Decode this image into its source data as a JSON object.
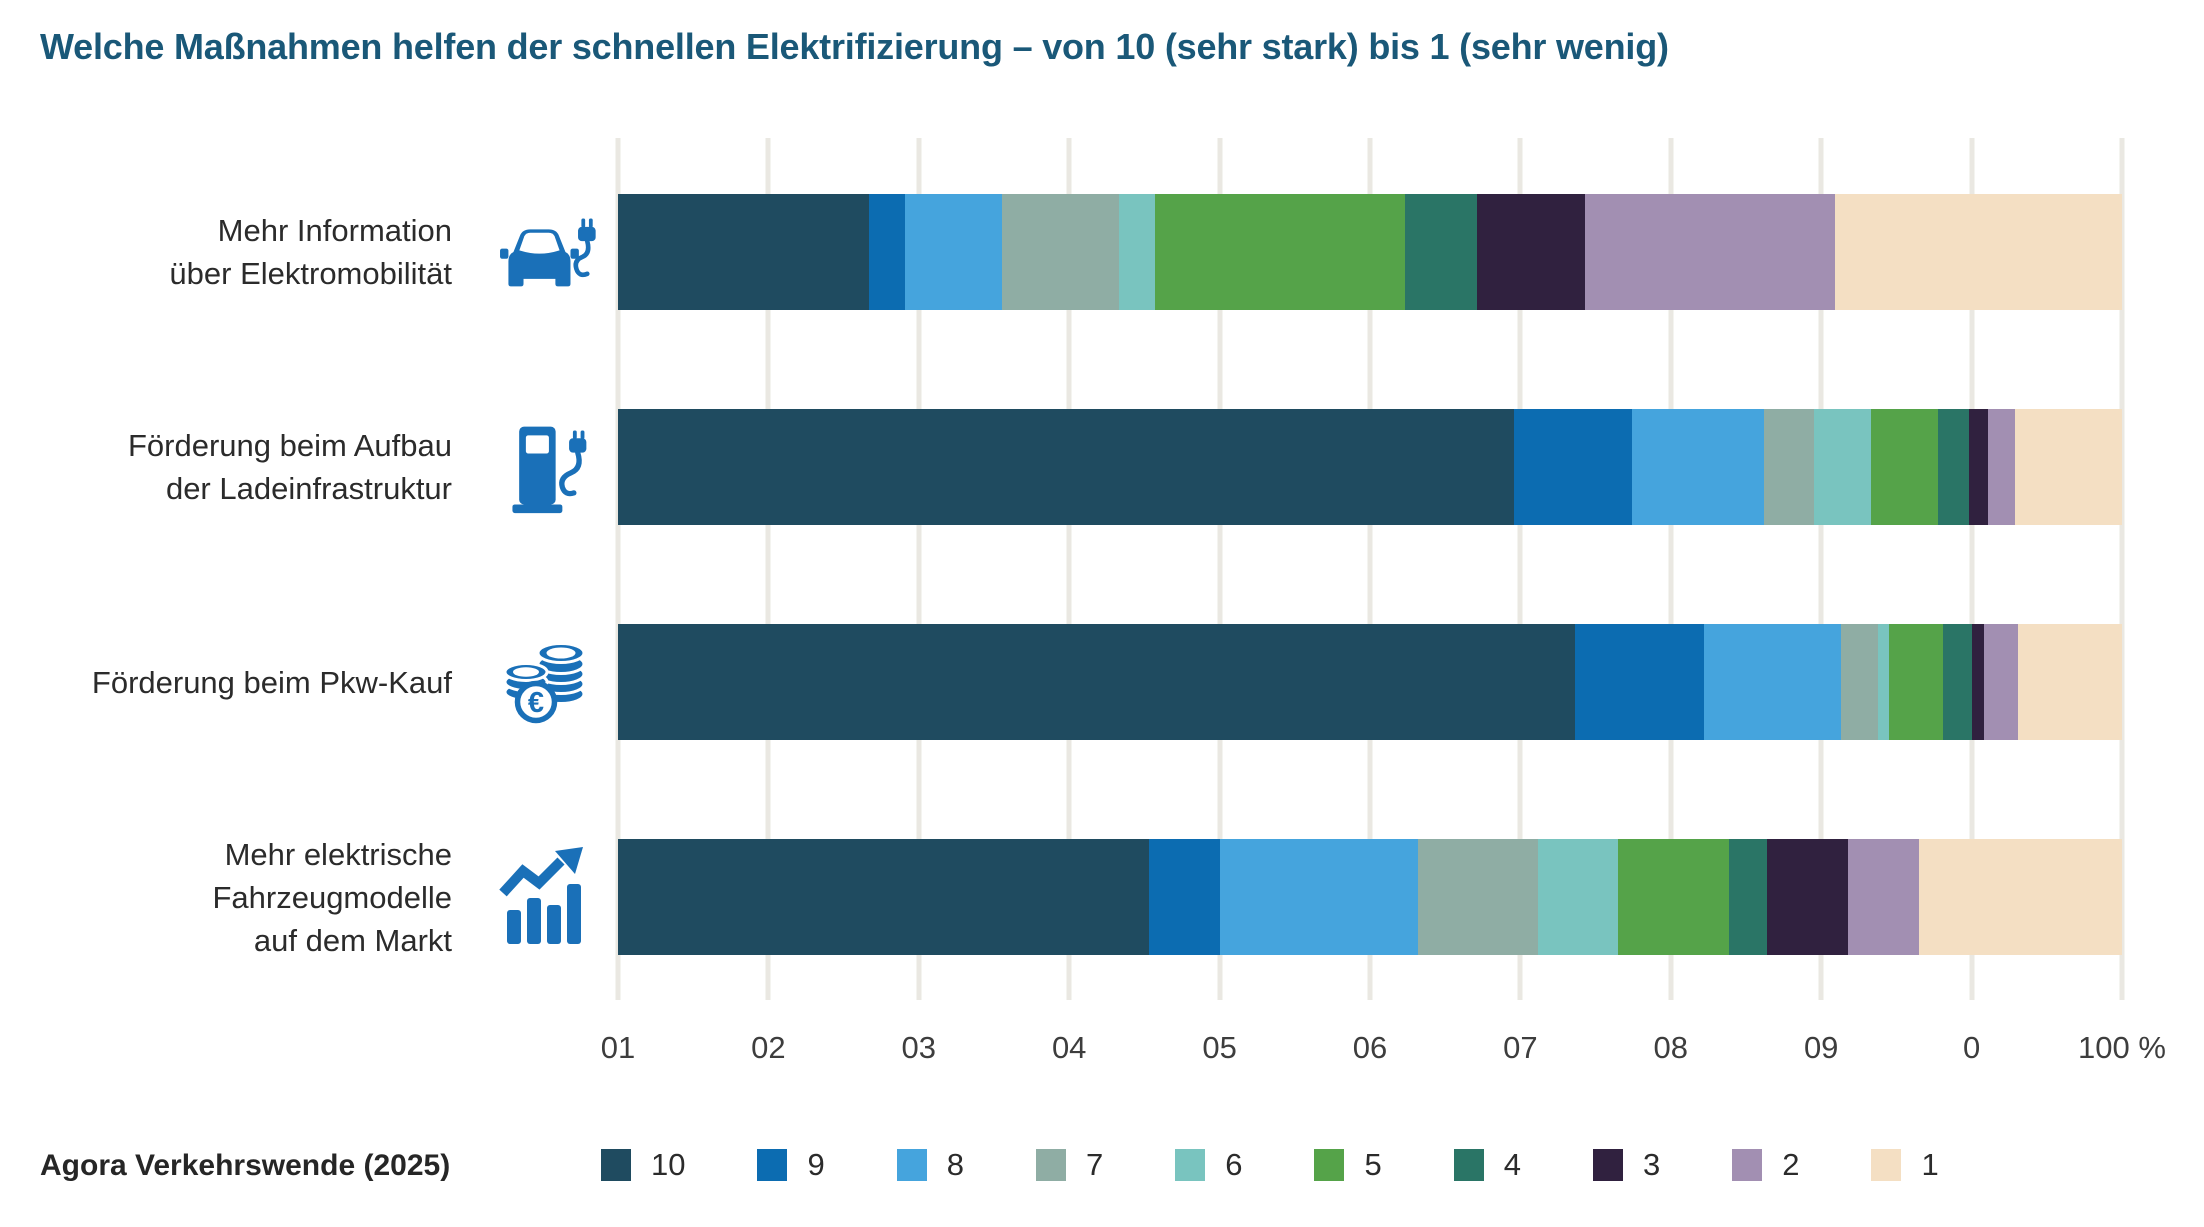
{
  "title": "Welche Maßnahmen helfen der schnellen Elektrifizierung – von 10 (sehr stark) bis 1 (sehr wenig)",
  "source": "Agora Verkehrswende (2025)",
  "accent": {
    "title_color": "#1a5878",
    "icon_color": "#1a70b8",
    "grid_color": "#eae8e2",
    "label_color": "#2b2b2b",
    "tick_color": "#3d3d3d"
  },
  "chart_data": {
    "type": "bar",
    "stacked": true,
    "orientation": "horizontal",
    "unit": "%",
    "xlim": [
      0,
      100
    ],
    "grid": true,
    "legend_position": "bottom",
    "x_tick_labels": [
      "01",
      "02",
      "03",
      "04",
      "05",
      "06",
      "07",
      "08",
      "09",
      "0",
      "100 %"
    ],
    "categories": [
      {
        "label": "Mehr Information\nüber Elektromobilität",
        "icon": "car-charging-icon"
      },
      {
        "label": "Förderung beim Aufbau\nder Ladeinfrastruktur",
        "icon": "charging-station-icon"
      },
      {
        "label": "Förderung beim Pkw-Kauf",
        "icon": "euro-coins-icon"
      },
      {
        "label": "Mehr elektrische\nFahrzeugmodelle\nauf dem Markt",
        "icon": "trend-chart-icon"
      }
    ],
    "series": [
      {
        "name": "10",
        "color": "#1f4b60",
        "values": [
          16.7,
          59.6,
          63.6,
          35.3
        ]
      },
      {
        "name": "9",
        "color": "#0c6cb1",
        "values": [
          2.4,
          7.8,
          8.6,
          4.7
        ]
      },
      {
        "name": "8",
        "color": "#45a4dd",
        "values": [
          6.4,
          8.8,
          9.1,
          13.2
        ]
      },
      {
        "name": "7",
        "color": "#8fada4",
        "values": [
          7.8,
          3.3,
          2.5,
          8.0
        ]
      },
      {
        "name": "6",
        "color": "#79c4bf",
        "values": [
          2.4,
          3.8,
          0.7,
          5.3
        ]
      },
      {
        "name": "5",
        "color": "#55a349",
        "values": [
          16.6,
          4.5,
          3.6,
          7.4
        ]
      },
      {
        "name": "4",
        "color": "#2a7566",
        "values": [
          4.8,
          2.0,
          1.9,
          2.5
        ]
      },
      {
        "name": "3",
        "color": "#30213f",
        "values": [
          7.2,
          1.3,
          0.8,
          5.4
        ]
      },
      {
        "name": "2",
        "color": "#a28fb2",
        "values": [
          16.6,
          1.8,
          2.3,
          4.7
        ]
      },
      {
        "name": "1",
        "color": "#f4dfc3",
        "values": [
          19.1,
          7.1,
          6.9,
          13.5
        ]
      }
    ]
  }
}
